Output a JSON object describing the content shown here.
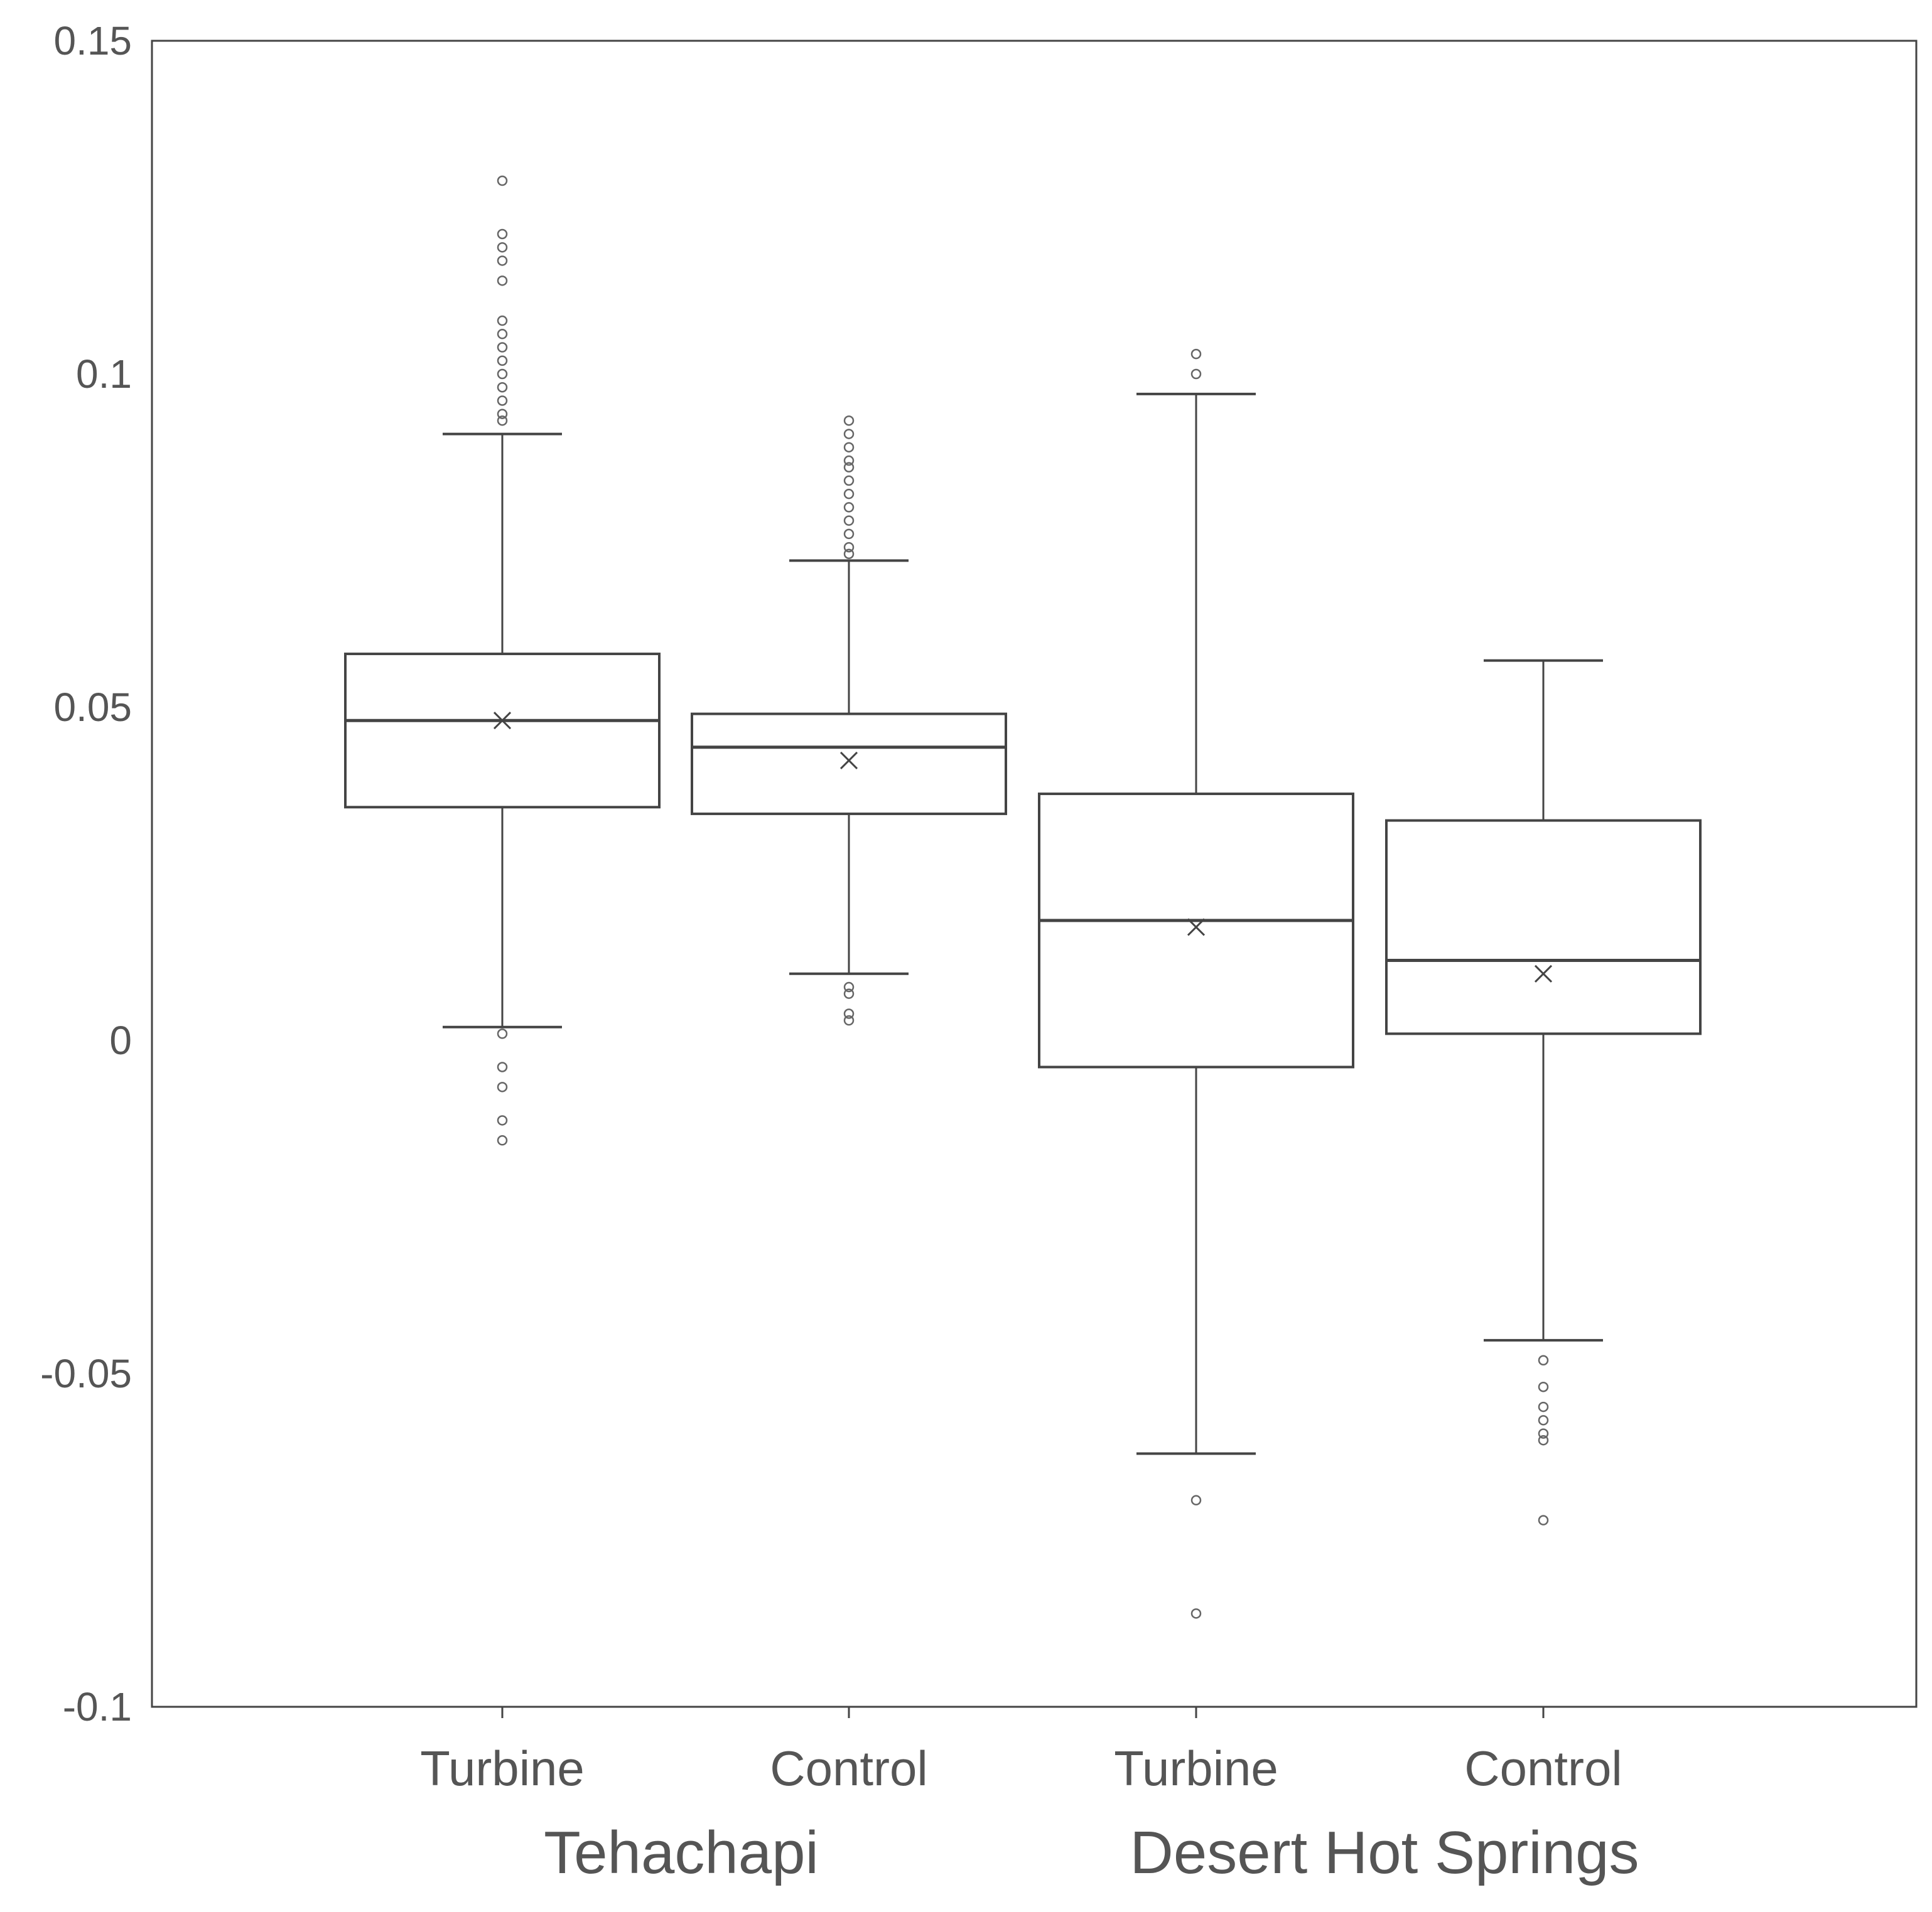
{
  "chart_data": {
    "type": "box",
    "ylim": [
      -0.1,
      0.15
    ],
    "y_ticks": [
      "0.15",
      "0.1",
      "0.05",
      "0",
      "-0.05",
      "-0.1"
    ],
    "y_tick_values": [
      0.15,
      0.1,
      0.05,
      0,
      -0.05,
      -0.1
    ],
    "grid": false,
    "legend": "none",
    "groups": [
      {
        "label": "Tehachapi",
        "categories": [
          "Turbine",
          "Control"
        ]
      },
      {
        "label": "Desert Hot Springs",
        "categories": [
          "Turbine",
          "Control"
        ]
      }
    ],
    "boxes": [
      {
        "group": "Tehachapi",
        "category": "Turbine",
        "whisker_low": 0.002,
        "q1": 0.035,
        "median": 0.048,
        "q3": 0.058,
        "whisker_high": 0.091,
        "mean": 0.048,
        "outliers": [
          0.129,
          0.121,
          0.119,
          0.117,
          0.114,
          0.108,
          0.106,
          0.104,
          0.102,
          0.1,
          0.098,
          0.096,
          0.094,
          0.093,
          0.001,
          -0.004,
          -0.007,
          -0.012,
          -0.015
        ]
      },
      {
        "group": "Tehachapi",
        "category": "Control",
        "whisker_low": 0.01,
        "q1": 0.034,
        "median": 0.044,
        "q3": 0.049,
        "whisker_high": 0.072,
        "mean": 0.042,
        "outliers": [
          0.093,
          0.091,
          0.089,
          0.087,
          0.086,
          0.084,
          0.082,
          0.08,
          0.078,
          0.076,
          0.074,
          0.073,
          0.008,
          0.007,
          0.004,
          0.003
        ]
      },
      {
        "group": "Desert Hot Springs",
        "category": "Turbine",
        "whisker_low": -0.062,
        "q1": -0.004,
        "median": 0.018,
        "q3": 0.037,
        "whisker_high": 0.097,
        "mean": 0.017,
        "outliers": [
          0.103,
          0.1,
          -0.069,
          -0.086
        ]
      },
      {
        "group": "Desert Hot Springs",
        "category": "Control",
        "whisker_low": -0.045,
        "q1": 0.001,
        "median": 0.012,
        "q3": 0.033,
        "whisker_high": 0.057,
        "mean": 0.01,
        "outliers": [
          -0.048,
          -0.052,
          -0.055,
          -0.057,
          -0.059,
          -0.06,
          -0.072
        ]
      }
    ]
  }
}
